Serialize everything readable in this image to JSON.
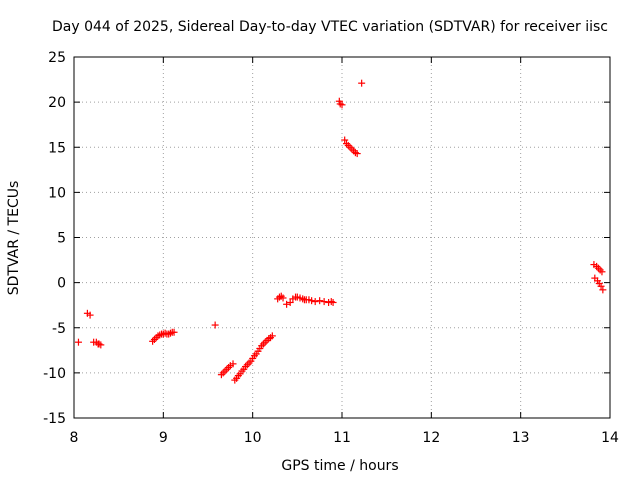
{
  "chart_data": {
    "type": "scatter",
    "title": "Day 044 of 2025, Sidereal Day-to-day VTEC variation (SDTVAR) for receiver iisc",
    "xlabel": "GPS time / hours",
    "ylabel": "SDTVAR / TECUs",
    "xlim": [
      8,
      14
    ],
    "ylim": [
      -15,
      25
    ],
    "xticks": [
      "8",
      "9",
      "10",
      "11",
      "12",
      "13",
      "14"
    ],
    "yticks": [
      "-15",
      "-10",
      "-5",
      "0",
      "5",
      "10",
      "15",
      "20",
      "25"
    ],
    "grid": true,
    "marker": "plus",
    "color": "#ff0000",
    "series": [
      {
        "x": [
          8.05,
          8.15,
          8.18,
          8.22,
          8.25,
          8.27,
          8.28,
          8.3,
          8.88,
          8.9,
          8.92,
          8.94,
          8.96,
          8.98,
          9.0,
          9.02,
          9.04,
          9.06,
          9.08,
          9.1,
          9.12,
          9.58,
          9.65,
          9.67,
          9.69,
          9.71,
          9.73,
          9.75,
          9.78,
          9.8,
          9.82,
          9.84,
          9.86,
          9.88,
          9.9,
          9.92,
          9.94,
          9.96,
          9.98,
          10.0,
          10.02,
          10.04,
          10.06,
          10.08,
          10.1,
          10.12,
          10.14,
          10.16,
          10.18,
          10.2,
          10.22,
          10.28,
          10.3,
          10.32,
          10.34,
          10.38,
          10.42,
          10.45,
          10.48,
          10.5,
          10.53,
          10.56,
          10.58,
          10.6,
          10.63,
          10.66,
          10.7,
          10.75,
          10.8,
          10.85,
          10.88,
          10.9,
          10.97,
          10.98,
          11.0,
          11.03,
          11.05,
          11.07,
          11.09,
          11.11,
          11.13,
          11.15,
          11.17,
          11.22,
          13.82,
          13.83,
          13.85,
          13.86,
          13.87,
          13.88,
          13.89,
          13.9,
          13.91,
          13.92
        ],
        "y": [
          -6.6,
          -3.4,
          -3.6,
          -6.6,
          -6.6,
          -6.8,
          -6.8,
          -6.9,
          -6.5,
          -6.3,
          -6.1,
          -5.9,
          -5.8,
          -5.7,
          -5.7,
          -5.6,
          -5.7,
          -5.7,
          -5.6,
          -5.5,
          -5.5,
          -4.7,
          -10.2,
          -10.0,
          -9.8,
          -9.6,
          -9.4,
          -9.2,
          -9.0,
          -10.8,
          -10.6,
          -10.3,
          -10.1,
          -9.8,
          -9.6,
          -9.3,
          -9.1,
          -8.9,
          -8.7,
          -8.4,
          -8.1,
          -7.9,
          -7.6,
          -7.3,
          -7.0,
          -6.8,
          -6.6,
          -6.4,
          -6.2,
          -6.1,
          -5.9,
          -1.8,
          -1.6,
          -1.5,
          -1.7,
          -2.4,
          -2.2,
          -1.8,
          -1.6,
          -1.6,
          -1.7,
          -1.8,
          -1.9,
          -1.9,
          -1.9,
          -2.0,
          -2.1,
          -2.0,
          -2.1,
          -2.2,
          -2.1,
          -2.2,
          20.1,
          19.8,
          19.7,
          15.8,
          15.4,
          15.2,
          15.0,
          14.8,
          14.6,
          14.4,
          14.3,
          22.1,
          2.0,
          0.5,
          1.8,
          0.2,
          1.6,
          -0.1,
          1.4,
          -0.4,
          1.2,
          -0.8
        ]
      }
    ]
  }
}
